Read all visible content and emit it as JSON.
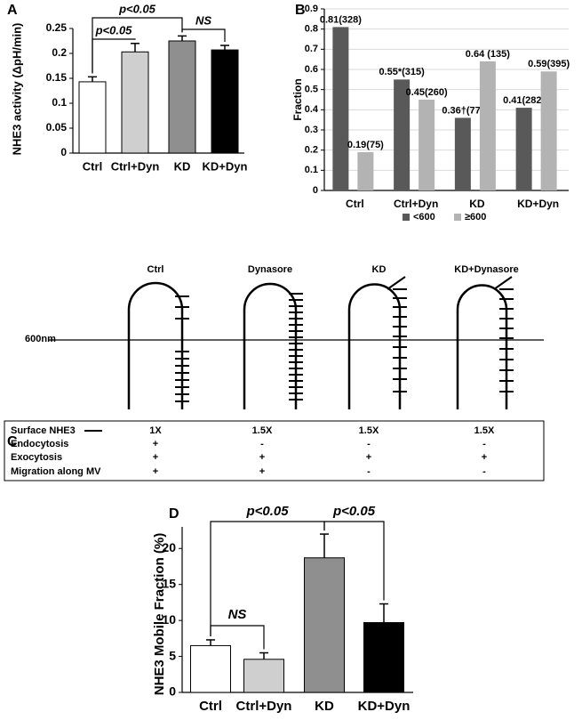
{
  "chart_data": [
    {
      "type": "bar",
      "panel": "A",
      "ylabel": "NHE3 activity (ΔpH/min)",
      "categories": [
        "Ctrl",
        "Ctrl+Dyn",
        "KD",
        "KD+Dyn"
      ],
      "values": [
        0.143,
        0.203,
        0.225,
        0.207
      ],
      "errors": [
        0.01,
        0.017,
        0.01,
        0.009
      ],
      "colors": [
        "#ffffff",
        "#cfcfcf",
        "#8f8f8f",
        "#000000"
      ],
      "ylim": [
        0,
        0.25
      ],
      "yticks": [
        0,
        0.05,
        0.1,
        0.15,
        0.2,
        0.25
      ],
      "annotations": [
        "p<0.05",
        "p<0.05",
        "NS"
      ]
    },
    {
      "type": "bar",
      "panel": "B",
      "ylabel": "Fraction",
      "categories": [
        "Ctrl",
        "Ctrl+Dyn",
        "KD",
        "KD+Dyn"
      ],
      "series": [
        {
          "name": "<600",
          "color": "#595959",
          "values": [
            0.81,
            0.55,
            0.36,
            0.41
          ],
          "value_labels": [
            "0.81(328)",
            "0.55*(315)",
            "0.36†(77)",
            "0.41(282)"
          ]
        },
        {
          "name": "≥600",
          "color": "#b3b3b3",
          "values": [
            0.19,
            0.45,
            0.64,
            0.59
          ],
          "value_labels": [
            "0.19(75)",
            "0.45(260)",
            "0.64 (135)",
            "0.59(395)"
          ]
        }
      ],
      "ylim": [
        0,
        0.9
      ],
      "yticks": [
        0,
        0.1,
        0.2,
        0.3,
        0.4,
        0.5,
        0.6,
        0.7,
        0.8,
        0.9
      ],
      "grid": true,
      "legend": "bottom"
    },
    {
      "type": "bar",
      "panel": "D",
      "ylabel": "NHE3 Mobile Fraction (%)",
      "categories": [
        "Ctrl",
        "Ctrl+Dyn",
        "KD",
        "KD+Dyn"
      ],
      "values": [
        6.5,
        4.6,
        18.7,
        9.7
      ],
      "errors": [
        0.8,
        0.9,
        3.3,
        2.6
      ],
      "colors": [
        "#ffffff",
        "#cfcfcf",
        "#8f8f8f",
        "#000000"
      ],
      "ylim": [
        0,
        23
      ],
      "yticks": [
        0,
        5,
        10,
        15,
        20
      ],
      "annotations": [
        "p<0.05",
        "p<0.05",
        "NS"
      ]
    }
  ],
  "diagram": {
    "panel": "C",
    "columns": [
      "Ctrl",
      "Dynasore",
      "KD",
      "KD+Dynasore"
    ],
    "reference": "600nm",
    "table": {
      "rows": [
        {
          "label": "Surface NHE3",
          "cells": [
            "1X",
            "1.5X",
            "1.5X",
            "1.5X"
          ]
        },
        {
          "label": "Endocytosis",
          "cells": [
            "+",
            "-",
            "-",
            "-"
          ]
        },
        {
          "label": "Exocytosis",
          "cells": [
            "+",
            "+",
            "+",
            "+"
          ]
        },
        {
          "label": "Migration along MV",
          "cells": [
            "+",
            "+",
            "-",
            "-"
          ]
        }
      ]
    }
  }
}
